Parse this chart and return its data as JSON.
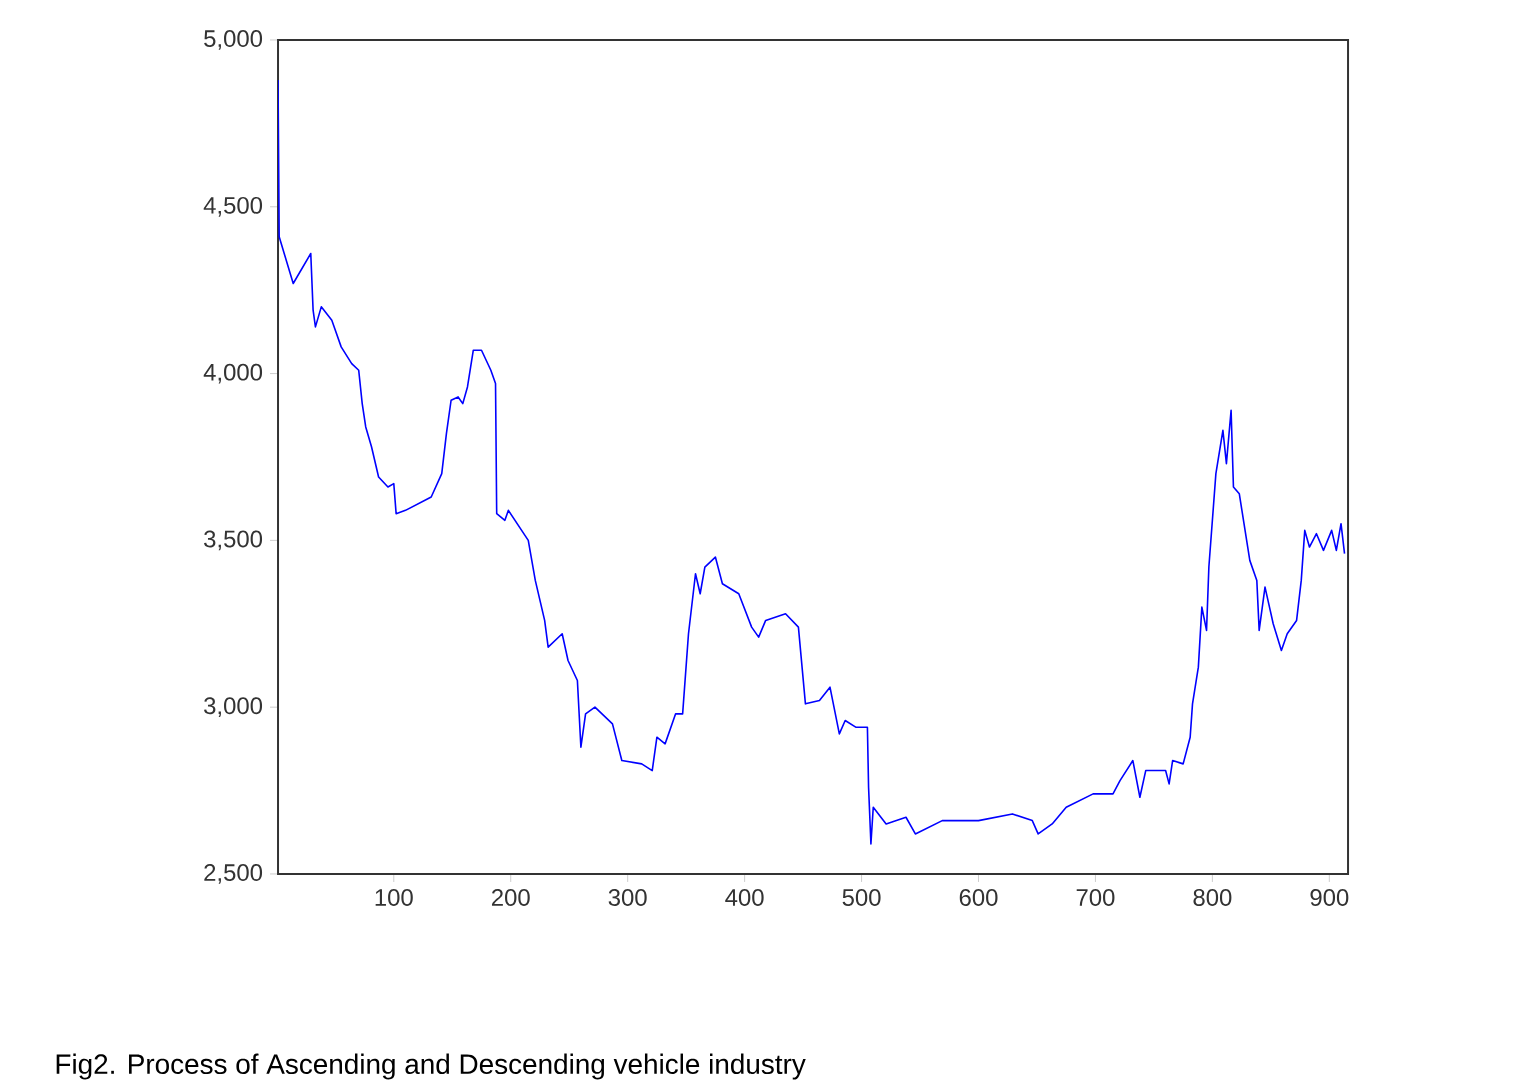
{
  "chart_data": {
    "type": "line",
    "color": "#0000ff",
    "x": [
      1,
      2,
      14,
      29,
      31,
      33,
      38,
      47,
      55,
      64,
      70,
      73,
      76,
      81,
      87,
      95,
      100,
      102,
      110,
      132,
      141,
      145,
      149,
      155,
      159,
      163,
      168,
      175,
      183,
      187,
      188,
      195,
      198,
      215,
      221,
      229,
      232,
      244,
      249,
      257,
      260,
      264,
      272,
      287,
      295,
      312,
      321,
      325,
      332,
      341,
      347,
      352,
      358,
      362,
      366,
      375,
      381,
      395,
      406,
      412,
      418,
      435,
      446,
      452,
      464,
      473,
      481,
      486,
      495,
      505,
      506,
      508,
      510,
      521,
      538,
      546,
      569,
      600,
      629,
      646,
      651,
      663,
      675,
      698,
      715,
      721,
      732,
      738,
      743,
      760,
      763,
      766,
      775,
      781,
      783,
      788,
      791,
      795,
      797,
      803,
      809,
      812,
      816,
      818,
      823,
      832,
      838,
      840,
      845,
      852,
      859,
      864,
      872,
      876,
      879,
      883,
      889,
      895,
      902,
      906,
      910,
      913
    ],
    "values": [
      4880,
      4410,
      4270,
      4360,
      4190,
      4140,
      4200,
      4160,
      4080,
      4030,
      4010,
      3910,
      3840,
      3780,
      3690,
      3660,
      3670,
      3580,
      3590,
      3630,
      3700,
      3820,
      3920,
      3930,
      3910,
      3960,
      4070,
      4070,
      4010,
      3970,
      3580,
      3560,
      3590,
      3500,
      3380,
      3260,
      3180,
      3220,
      3140,
      3080,
      2880,
      2980,
      3000,
      2950,
      2840,
      2830,
      2810,
      2910,
      2890,
      2980,
      2980,
      3220,
      3400,
      3340,
      3420,
      3450,
      3370,
      3340,
      3240,
      3210,
      3260,
      3280,
      3240,
      3010,
      3020,
      3060,
      2920,
      2960,
      2940,
      2940,
      2760,
      2590,
      2700,
      2650,
      2670,
      2620,
      2660,
      2660,
      2680,
      2660,
      2620,
      2650,
      2700,
      2740,
      2740,
      2780,
      2840,
      2730,
      2810,
      2810,
      2770,
      2840,
      2830,
      2910,
      3010,
      3120,
      3300,
      3230,
      3420,
      3700,
      3830,
      3730,
      3890,
      3660,
      3640,
      3440,
      3380,
      3230,
      3360,
      3250,
      3170,
      3220,
      3260,
      3380,
      3530,
      3480,
      3520,
      3470,
      3530,
      3470,
      3550,
      3460
    ],
    "xlim": [
      1,
      916
    ],
    "ylim": [
      2500,
      5000
    ],
    "xticks": [
      100,
      200,
      300,
      400,
      500,
      600,
      700,
      800,
      900
    ],
    "yticks": [
      {
        "value": 2500,
        "label": "2,500"
      },
      {
        "value": 3000,
        "label": "3,000"
      },
      {
        "value": 3500,
        "label": "3,500"
      },
      {
        "value": 4000,
        "label": "4,000"
      },
      {
        "value": 4500,
        "label": "4,500"
      },
      {
        "value": 5000,
        "label": "5,000"
      }
    ],
    "annotations": [
      "Fig2. Process of Ascending and Descending vehicle industry"
    ]
  }
}
